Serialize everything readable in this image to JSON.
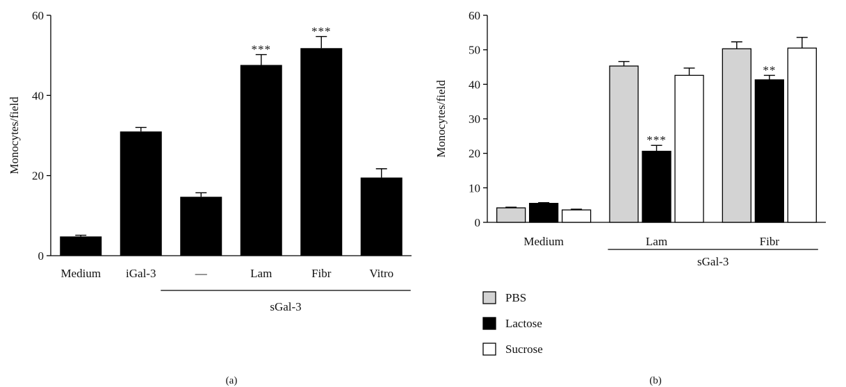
{
  "chart_data": [
    {
      "type": "bar",
      "panel_label": "(a)",
      "ylabel": "Monocytes/field",
      "ylim": [
        0,
        60
      ],
      "yticks": [
        "0",
        "20",
        "40",
        "60"
      ],
      "categories": [
        "Medium",
        "iGal-3",
        "—",
        "Lam",
        "Fibr",
        "Vitro"
      ],
      "values": [
        4.8,
        31.0,
        14.7,
        47.6,
        51.8,
        19.5
      ],
      "errors": [
        0.3,
        1.0,
        1.0,
        2.6,
        2.9,
        2.2
      ],
      "significance": [
        "",
        "",
        "",
        "***",
        "***",
        ""
      ],
      "bar_color": "#000000",
      "group_label": "sGal-3",
      "group_span": [
        "—",
        "Vitro"
      ]
    },
    {
      "type": "bar",
      "panel_label": "(b)",
      "ylabel": "Monocytes/field",
      "ylim": [
        0,
        60
      ],
      "yticks": [
        "0",
        "10",
        "20",
        "30",
        "40",
        "50",
        "60"
      ],
      "categories": [
        "Medium",
        "Lam",
        "Fibr"
      ],
      "series": [
        {
          "name": "PBS",
          "color": "#d3d3d3",
          "values": [
            4.2,
            45.3,
            50.3
          ],
          "errors": [
            0.2,
            1.3,
            2.0
          ],
          "significance": [
            "",
            "",
            ""
          ]
        },
        {
          "name": "Lactose",
          "color": "#000000",
          "values": [
            5.5,
            20.6,
            41.3
          ],
          "errors": [
            0.2,
            1.7,
            1.3
          ],
          "significance": [
            "",
            "***",
            "**"
          ]
        },
        {
          "name": "Sucrose",
          "color": "#ffffff",
          "values": [
            3.6,
            42.6,
            50.5
          ],
          "errors": [
            0.2,
            2.1,
            3.1
          ],
          "significance": [
            "",
            "",
            ""
          ]
        }
      ],
      "group_label": "sGal-3",
      "group_span": [
        "Lam",
        "Fibr"
      ],
      "legend_position": "below-left"
    }
  ]
}
